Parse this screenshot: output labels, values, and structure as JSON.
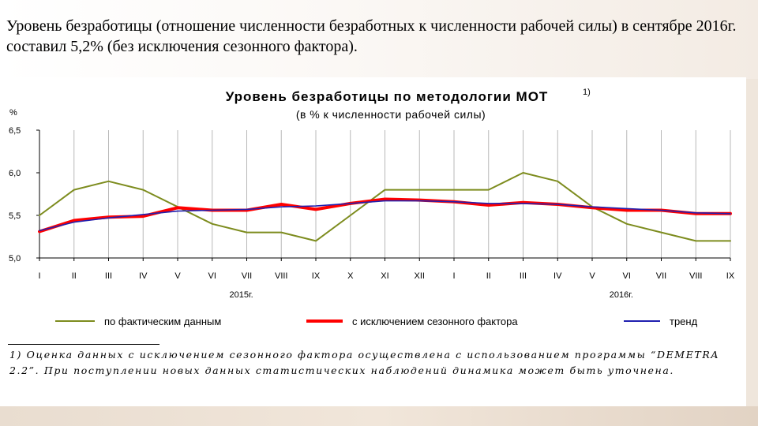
{
  "intro_text": "Уровень безработицы (отношение численности безработных к численности рабочей силы) в сентябре 2016г. составил 5,2% (без исключения сезонного фактора).",
  "chart_data": {
    "type": "line",
    "title": "Уровень безработицы по методологии МОТ",
    "title_sup": "1)",
    "subtitle": "(в % к численности рабочей силы)",
    "ylabel": "%",
    "ylim": [
      5.0,
      6.5
    ],
    "yticks": [
      "6,5",
      "6,0",
      "5,5",
      "5,0"
    ],
    "ytick_values": [
      6.5,
      6.0,
      5.5,
      5.0
    ],
    "categories": [
      "I",
      "II",
      "III",
      "IV",
      "V",
      "VI",
      "VII",
      "VIII",
      "IX",
      "X",
      "XI",
      "XII",
      "I",
      "II",
      "III",
      "IV",
      "V",
      "VI",
      "VII",
      "VIII",
      "IX"
    ],
    "year_labels": [
      {
        "label": "2015г.",
        "category_index": 5.5
      },
      {
        "label": "2016г.",
        "category_index": 16.5
      }
    ],
    "grid": "vertical",
    "legend_position": "bottom",
    "series": [
      {
        "name": "по фактическим данным",
        "color": "#7d8c1e",
        "values": [
          5.5,
          5.8,
          5.9,
          5.8,
          5.6,
          5.4,
          5.3,
          5.3,
          5.2,
          5.5,
          5.8,
          5.8,
          5.8,
          5.8,
          6.0,
          5.9,
          5.6,
          5.4,
          5.3,
          5.2,
          5.2
        ]
      },
      {
        "name": "с исключением сезонного фактора",
        "color": "#ff0000",
        "values": [
          5.31,
          5.44,
          5.48,
          5.49,
          5.59,
          5.56,
          5.56,
          5.63,
          5.57,
          5.64,
          5.69,
          5.68,
          5.66,
          5.62,
          5.65,
          5.63,
          5.59,
          5.56,
          5.56,
          5.52,
          5.52
        ]
      },
      {
        "name": "тренд",
        "color": "#2020b0",
        "values": [
          5.32,
          5.42,
          5.47,
          5.51,
          5.55,
          5.56,
          5.57,
          5.6,
          5.61,
          5.64,
          5.67,
          5.67,
          5.66,
          5.64,
          5.64,
          5.63,
          5.6,
          5.58,
          5.56,
          5.53,
          5.52
        ]
      }
    ],
    "footnote": "1) Оценка данных с исключением сезонного фактора осуществлена с использованием программы “DEMETRA 2.2”. При поступлении новых данных статистических наблюдений динамика может быть уточнена."
  }
}
